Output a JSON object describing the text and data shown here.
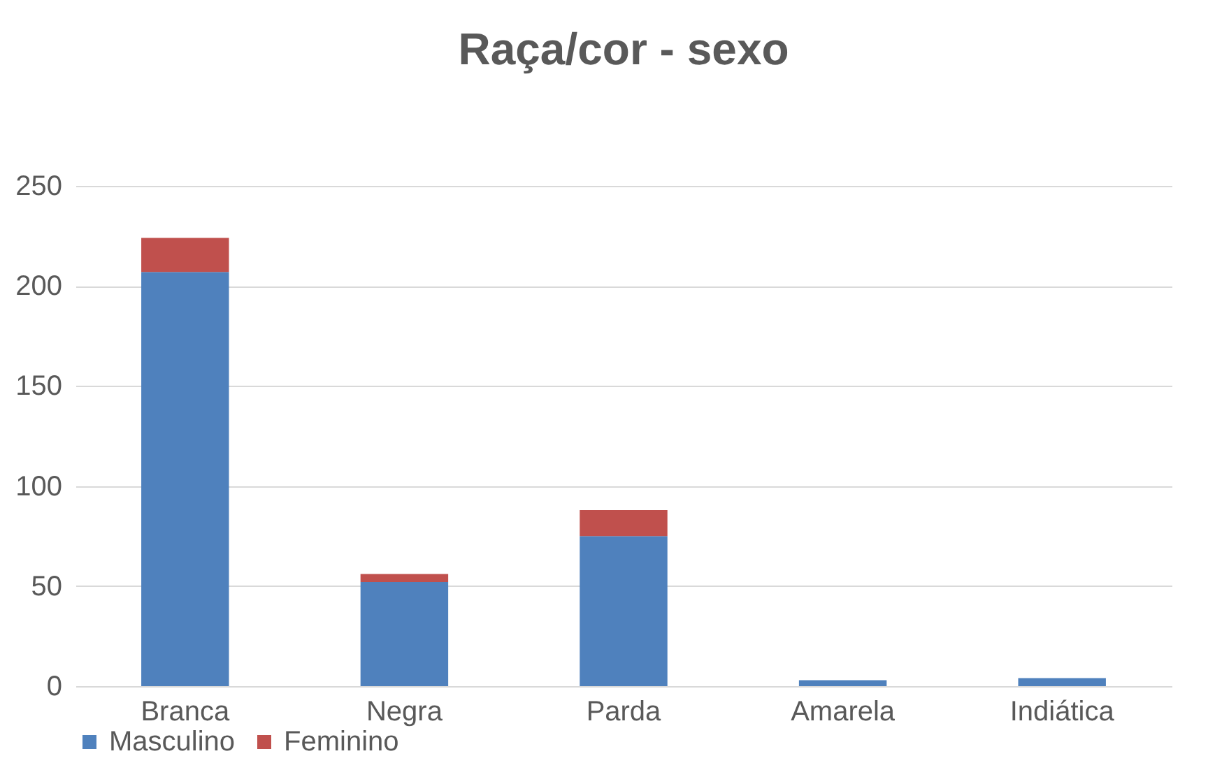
{
  "chart_data": {
    "type": "bar",
    "title": "Raça/cor - sexo",
    "categories": [
      "Branca",
      "Negra",
      "Parda",
      "Amarela",
      "Indiática"
    ],
    "stacked": true,
    "series": [
      {
        "name": "Masculino",
        "color": "#4f81bd",
        "values": [
          207,
          52,
          75,
          3,
          4
        ]
      },
      {
        "name": "Feminino",
        "color": "#c0504d",
        "values": [
          17,
          4,
          13,
          0,
          0
        ]
      }
    ],
    "ylim": [
      0,
      250
    ],
    "yticks": [
      0,
      50,
      100,
      150,
      200,
      250
    ],
    "grid": "y",
    "legend": "bottom"
  }
}
